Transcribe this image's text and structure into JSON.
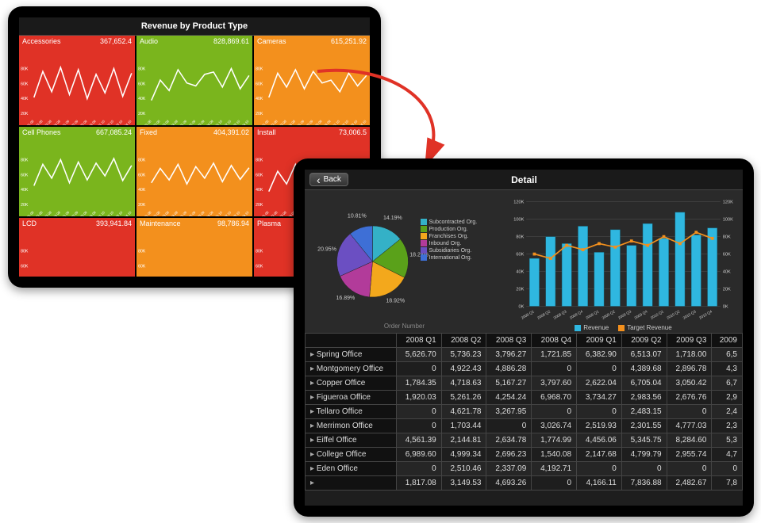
{
  "overview": {
    "title": "Revenue by Product Type",
    "ylabels": [
      "20K",
      "40K",
      "60K",
      "80K"
    ],
    "xlabels": [
      "Q1 08",
      "Q2 08",
      "Q3 08",
      "Q4 08",
      "Q1 09",
      "Q2 09",
      "Q3 09",
      "Q4 09",
      "Q1 10",
      "Q2 10",
      "Q3 10",
      "Q4 10"
    ],
    "tile_line_color": "#ffffff",
    "tile_text_color": "#ffffff",
    "colors": {
      "red": "#e03226",
      "green": "#7ab51d",
      "orange": "#f3901d"
    },
    "tiles": [
      {
        "label": "Accessories",
        "value": "367,652.4",
        "bg": "red",
        "series": [
          30,
          75,
          40,
          82,
          35,
          78,
          28,
          70,
          38,
          80,
          32,
          72
        ]
      },
      {
        "label": "Audio",
        "value": "828,869.61",
        "bg": "green",
        "series": [
          25,
          60,
          42,
          78,
          55,
          50,
          70,
          74,
          48,
          80,
          45,
          68
        ]
      },
      {
        "label": "Cameras",
        "value": "615,251.92",
        "bg": "orange",
        "series": [
          30,
          72,
          48,
          78,
          45,
          75,
          55,
          60,
          40,
          72,
          50,
          68
        ]
      },
      {
        "label": "Cell Phones",
        "value": "667,085.24",
        "bg": "green",
        "series": [
          35,
          72,
          48,
          80,
          40,
          76,
          45,
          74,
          52,
          82,
          44,
          70
        ]
      },
      {
        "label": "Fixed",
        "value": "404,391.02",
        "bg": "orange",
        "series": [
          40,
          65,
          45,
          72,
          38,
          68,
          48,
          74,
          42,
          70,
          46,
          66
        ]
      },
      {
        "label": "Install",
        "value": "73,006.5",
        "bg": "red",
        "series": [
          25,
          60,
          38,
          72,
          32,
          64,
          36,
          70,
          40,
          74,
          34,
          62
        ]
      },
      {
        "label": "LCD",
        "value": "393,941.84",
        "bg": "red",
        "series": []
      },
      {
        "label": "Maintenance",
        "value": "98,786.94",
        "bg": "orange",
        "series": []
      },
      {
        "label": "Plasma",
        "value": "",
        "bg": "red",
        "series": []
      }
    ]
  },
  "flow_arrow_color": "#e03226",
  "detail": {
    "back_label": "Back",
    "title": "Detail",
    "pie": {
      "caption": "Order Number",
      "label_color": "#cccccc",
      "slices": [
        {
          "label": "Subcontracted Org.",
          "pct": 14.19,
          "color": "#34b1c7"
        },
        {
          "label": "Production Org.",
          "pct": 18.24,
          "color": "#5aa11a"
        },
        {
          "label": "Franchises Org.",
          "pct": 18.92,
          "color": "#f3a81c"
        },
        {
          "label": "Inbound Org.",
          "pct": 16.89,
          "color": "#b23b9a"
        },
        {
          "label": "Subsidiaries Org.",
          "pct": 20.95,
          "color": "#6b4fc2"
        },
        {
          "label": "International Org.",
          "pct": 10.81,
          "color": "#3e6fd6"
        }
      ]
    },
    "barline": {
      "y_ticks": [
        0,
        20,
        40,
        60,
        80,
        100,
        120
      ],
      "y_unit": "K",
      "x_labels": [
        "2008 Q1",
        "2008 Q2",
        "2008 Q3",
        "2008 Q4",
        "2009 Q1",
        "2009 Q2",
        "2009 Q3",
        "2009 Q4",
        "2010 Q1",
        "2010 Q2",
        "2010 Q3",
        "2010 Q4"
      ],
      "bar_color": "#2fb7e0",
      "line_color": "#f3901d",
      "grid_color": "#555555",
      "bars": [
        55,
        80,
        72,
        92,
        62,
        88,
        70,
        95,
        78,
        108,
        82,
        90
      ],
      "line": [
        60,
        55,
        70,
        65,
        72,
        68,
        75,
        70,
        80,
        72,
        85,
        78
      ],
      "series_labels": {
        "bar": "Revenue",
        "line": "Target Revenue"
      }
    },
    "table": {
      "columns": [
        "",
        "2008 Q1",
        "2008 Q2",
        "2008 Q3",
        "2008 Q4",
        "2009 Q1",
        "2009 Q2",
        "2009 Q3",
        "2009"
      ],
      "rows": [
        [
          "Spring Office",
          "5,626.70",
          "5,736.23",
          "3,796.27",
          "1,721.85",
          "6,382.90",
          "6,513.07",
          "1,718.00",
          "6,5"
        ],
        [
          "Montgomery Office",
          "0",
          "4,922.43",
          "4,886.28",
          "0",
          "0",
          "4,389.68",
          "2,896.78",
          "4,3"
        ],
        [
          "Copper Office",
          "1,784.35",
          "4,718.63",
          "5,167.27",
          "3,797.60",
          "2,622.04",
          "6,705.04",
          "3,050.42",
          "6,7"
        ],
        [
          "Figueroa Office",
          "1,920.03",
          "5,261.26",
          "4,254.24",
          "6,968.70",
          "3,734.27",
          "2,983.56",
          "2,676.76",
          "2,9"
        ],
        [
          "Tellaro Office",
          "0",
          "4,621.78",
          "3,267.95",
          "0",
          "0",
          "2,483.15",
          "0",
          "2,4"
        ],
        [
          "Merrimon Office",
          "0",
          "1,703.44",
          "0",
          "3,026.74",
          "2,519.93",
          "2,301.55",
          "4,777.03",
          "2,3"
        ],
        [
          "Eiffel Office",
          "4,561.39",
          "2,144.81",
          "2,634.78",
          "1,774.99",
          "4,456.06",
          "5,345.75",
          "8,284.60",
          "5,3"
        ],
        [
          "College Office",
          "6,989.60",
          "4,999.34",
          "2,696.23",
          "1,540.08",
          "2,147.68",
          "4,799.79",
          "2,955.74",
          "4,7"
        ],
        [
          "Eden Office",
          "0",
          "2,510.46",
          "2,337.09",
          "4,192.71",
          "0",
          "0",
          "0",
          "0"
        ],
        [
          "",
          "1,817.08",
          "3,149.53",
          "4,693.26",
          "0",
          "4,166.11",
          "7,836.88",
          "2,482.67",
          "7,8"
        ]
      ]
    }
  }
}
